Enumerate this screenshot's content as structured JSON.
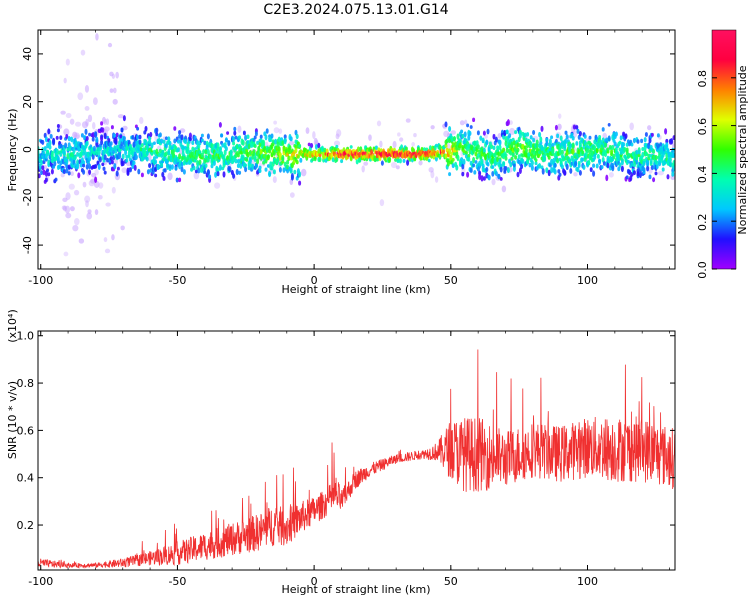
{
  "title": "C2E3.2024.075.13.01.G14",
  "chart_data": [
    {
      "type": "heatmap",
      "xlabel": "Height of straight line (km)",
      "ylabel": "Frequency (Hz)",
      "xlim": [
        -101,
        132
      ],
      "ylim": [
        -50,
        50
      ],
      "xticks": [
        -100,
        -50,
        0,
        50,
        100
      ],
      "yticks": [
        -40,
        -20,
        0,
        20,
        40
      ],
      "xtick_labels": [
        "-100",
        "-50",
        "0",
        "50",
        "100"
      ],
      "ytick_labels": [
        "-40",
        "-20",
        "0",
        "20",
        "40"
      ],
      "colorbar": {
        "label": "Normalized spectral amplitude",
        "range": [
          0,
          1
        ],
        "ticks": [
          0.0,
          0.2,
          0.4,
          0.6,
          0.8
        ],
        "tick_labels": [
          "0.0",
          "0.2",
          "0.4",
          "0.6",
          "0.8"
        ],
        "colormap": [
          "#a000ff",
          "#2010ff",
          "#00c8ff",
          "#00ffb0",
          "#30ff00",
          "#e0ff00",
          "#ff8000",
          "#ff0040",
          "#ff1060"
        ]
      },
      "ridge": [
        {
          "x": -100,
          "y": -2,
          "amp": 0.3
        },
        {
          "x": -90,
          "y": -2,
          "amp": 0.35
        },
        {
          "x": -80,
          "y": -1,
          "amp": 0.3
        },
        {
          "x": -70,
          "y": 0,
          "amp": 0.3
        },
        {
          "x": -60,
          "y": -1,
          "amp": 0.4
        },
        {
          "x": -50,
          "y": -2,
          "amp": 0.4
        },
        {
          "x": -40,
          "y": -3,
          "amp": 0.45
        },
        {
          "x": -30,
          "y": -2,
          "amp": 0.45
        },
        {
          "x": -20,
          "y": -1,
          "amp": 0.5
        },
        {
          "x": -10,
          "y": -2,
          "amp": 0.6
        },
        {
          "x": 0,
          "y": -2,
          "amp": 0.7
        },
        {
          "x": 10,
          "y": -2,
          "amp": 0.9
        },
        {
          "x": 20,
          "y": -2,
          "amp": 0.92
        },
        {
          "x": 30,
          "y": -2,
          "amp": 0.9
        },
        {
          "x": 40,
          "y": -2,
          "amp": 0.85
        },
        {
          "x": 47,
          "y": -1,
          "amp": 0.8
        },
        {
          "x": 55,
          "y": 0,
          "amp": 0.45
        },
        {
          "x": 65,
          "y": -3,
          "amp": 0.45
        },
        {
          "x": 75,
          "y": 1,
          "amp": 0.55
        },
        {
          "x": 85,
          "y": -2,
          "amp": 0.45
        },
        {
          "x": 95,
          "y": -1,
          "amp": 0.45
        },
        {
          "x": 105,
          "y": 0,
          "amp": 0.45
        },
        {
          "x": 115,
          "y": -2,
          "amp": 0.4
        },
        {
          "x": 125,
          "y": -3,
          "amp": 0.4
        },
        {
          "x": 132,
          "y": -4,
          "amp": 0.35
        }
      ]
    },
    {
      "type": "line",
      "xlabel": "Height of straight line (km)",
      "ylabel": "SNR (10 * v/v)",
      "scale_label": "(x10⁴)",
      "xlim": [
        -101,
        132
      ],
      "ylim": [
        0.01,
        1.02
      ],
      "xticks": [
        -100,
        -50,
        0,
        50,
        100
      ],
      "yticks": [
        0.2,
        0.4,
        0.6,
        0.8,
        1.0
      ],
      "xtick_labels": [
        "-100",
        "-50",
        "0",
        "50",
        "100"
      ],
      "ytick_labels": [
        "0.2",
        "0.4",
        "0.6",
        "0.8",
        "1.0"
      ],
      "color": "#f03030",
      "envelope": {
        "x": [
          -101,
          -90,
          -80,
          -70,
          -60,
          -50,
          -40,
          -30,
          -20,
          -15,
          -10,
          -5,
          0,
          5,
          8,
          10,
          15,
          20,
          30,
          40,
          45,
          50,
          55,
          60,
          70,
          80,
          90,
          100,
          110,
          120,
          132
        ],
        "mean": [
          0.04,
          0.03,
          0.03,
          0.04,
          0.06,
          0.08,
          0.11,
          0.14,
          0.17,
          0.2,
          0.19,
          0.23,
          0.26,
          0.3,
          0.33,
          0.3,
          0.39,
          0.43,
          0.48,
          0.5,
          0.51,
          0.52,
          0.5,
          0.5,
          0.48,
          0.52,
          0.5,
          0.53,
          0.52,
          0.52,
          0.48
        ],
        "noise": [
          0.02,
          0.01,
          0.01,
          0.02,
          0.03,
          0.05,
          0.06,
          0.07,
          0.08,
          0.09,
          0.08,
          0.07,
          0.06,
          0.06,
          0.08,
          0.05,
          0.04,
          0.03,
          0.02,
          0.02,
          0.04,
          0.13,
          0.16,
          0.16,
          0.12,
          0.12,
          0.12,
          0.13,
          0.14,
          0.14,
          0.13
        ]
      }
    }
  ]
}
